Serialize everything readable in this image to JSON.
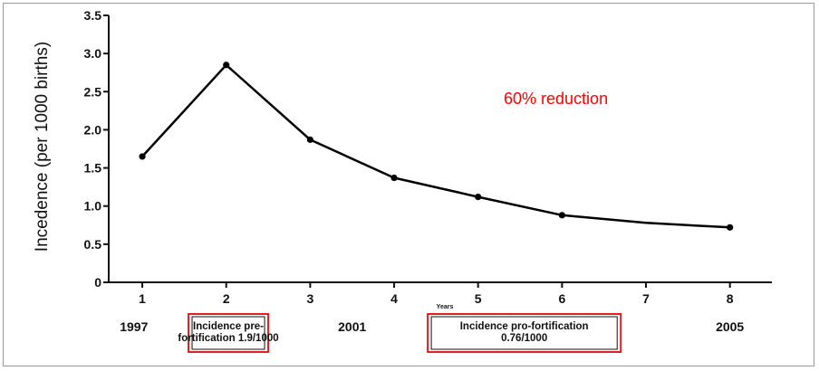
{
  "chart_data": {
    "type": "line",
    "ylabel": "Incedence (per 1000 births)",
    "xlabel": "Years",
    "x": [
      1,
      2,
      3,
      4,
      5,
      6,
      7,
      8
    ],
    "xticks": [
      "1",
      "2",
      "3",
      "4",
      "5",
      "6",
      "7",
      "8"
    ],
    "yticks": [
      "0",
      "0.5",
      "1.0",
      "1.5",
      "2.0",
      "2.5",
      "3.0",
      "3.5"
    ],
    "ylim": [
      0,
      3.5
    ],
    "xlim": [
      0.6,
      8.5
    ],
    "series": [
      {
        "values": [
          1.65,
          2.85,
          1.87,
          1.37,
          1.12,
          0.88,
          null,
          0.72
        ],
        "markers": [
          true,
          true,
          true,
          true,
          true,
          true,
          false,
          true
        ]
      }
    ],
    "curve_through": {
      "x": 7,
      "y": 0.78
    },
    "grid": false,
    "color": "#000000",
    "annotation": {
      "text": "60% reduction",
      "color": "#ff0000"
    }
  },
  "timeline": {
    "years": [
      {
        "label": "1997",
        "x": 0.9
      },
      {
        "label": "2001",
        "x": 3.5
      },
      {
        "label": "2005",
        "x": 8.0
      }
    ],
    "boxes": [
      {
        "lines": [
          "Incidence pre-",
          "fortification 1.9/1000"
        ],
        "x0": 1.55,
        "x1": 2.5
      },
      {
        "lines": [
          "Incidence pro-fortification",
          "0.76/1000"
        ],
        "x0": 4.4,
        "x1": 6.7
      }
    ],
    "box_border_color": "#e02020"
  }
}
